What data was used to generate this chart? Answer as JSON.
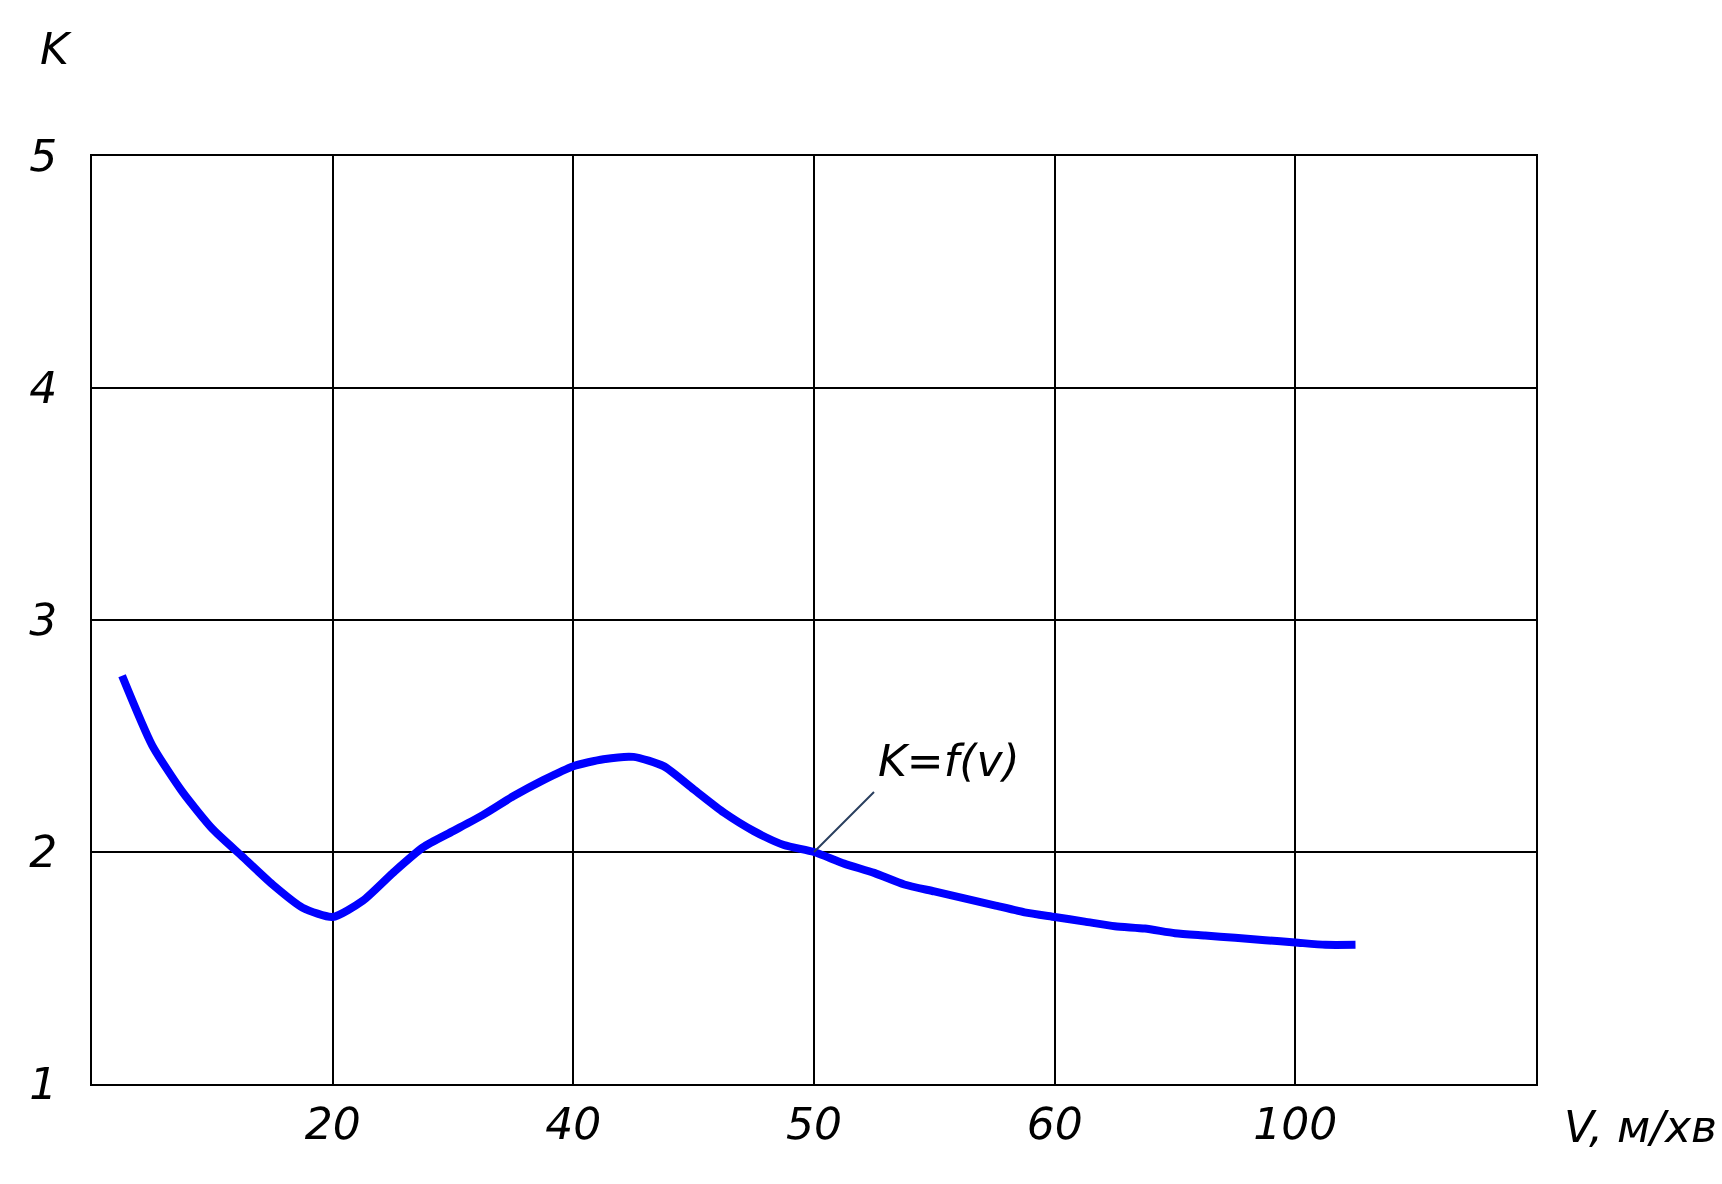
{
  "chart_data": {
    "type": "line",
    "xlabel": "V, м/хв",
    "ylabel": "K",
    "categories": [
      null,
      null,
      null,
      null,
      null,
      null,
      null,
      null,
      "20",
      null,
      null,
      null,
      null,
      null,
      null,
      null,
      "40",
      null,
      null,
      null,
      null,
      null,
      null,
      null,
      "50",
      null,
      null,
      null,
      null,
      null,
      null,
      null,
      "60",
      null,
      null,
      null,
      null,
      null,
      null,
      null,
      "100",
      null,
      null,
      null,
      null,
      null,
      null,
      null,
      null
    ],
    "series": [
      {
        "color": "#0000ff",
        "values": [
          null,
          2.76,
          2.46,
          2.26,
          2.1,
          1.98,
          1.86,
          1.76,
          1.72,
          1.79,
          1.91,
          2.02,
          2.09,
          2.16,
          2.24,
          2.31,
          2.37,
          2.4,
          2.41,
          2.37,
          2.27,
          2.17,
          2.09,
          2.03,
          2.0,
          1.95,
          1.91,
          1.86,
          1.83,
          1.8,
          1.77,
          1.74,
          1.72,
          1.7,
          1.68,
          1.67,
          1.65,
          1.64,
          1.63,
          1.62,
          1.61,
          1.6,
          1.6,
          null,
          null,
          null,
          null,
          null,
          null
        ]
      }
    ],
    "ylim": [
      1,
      5
    ],
    "yticks": [
      1,
      2,
      3,
      4,
      5
    ],
    "grid": true,
    "marker": "none",
    "line_style": "solid",
    "legend": false,
    "annotations": [
      {
        "text": "K=f(v)",
        "x": "50",
        "y": 2
      }
    ]
  }
}
